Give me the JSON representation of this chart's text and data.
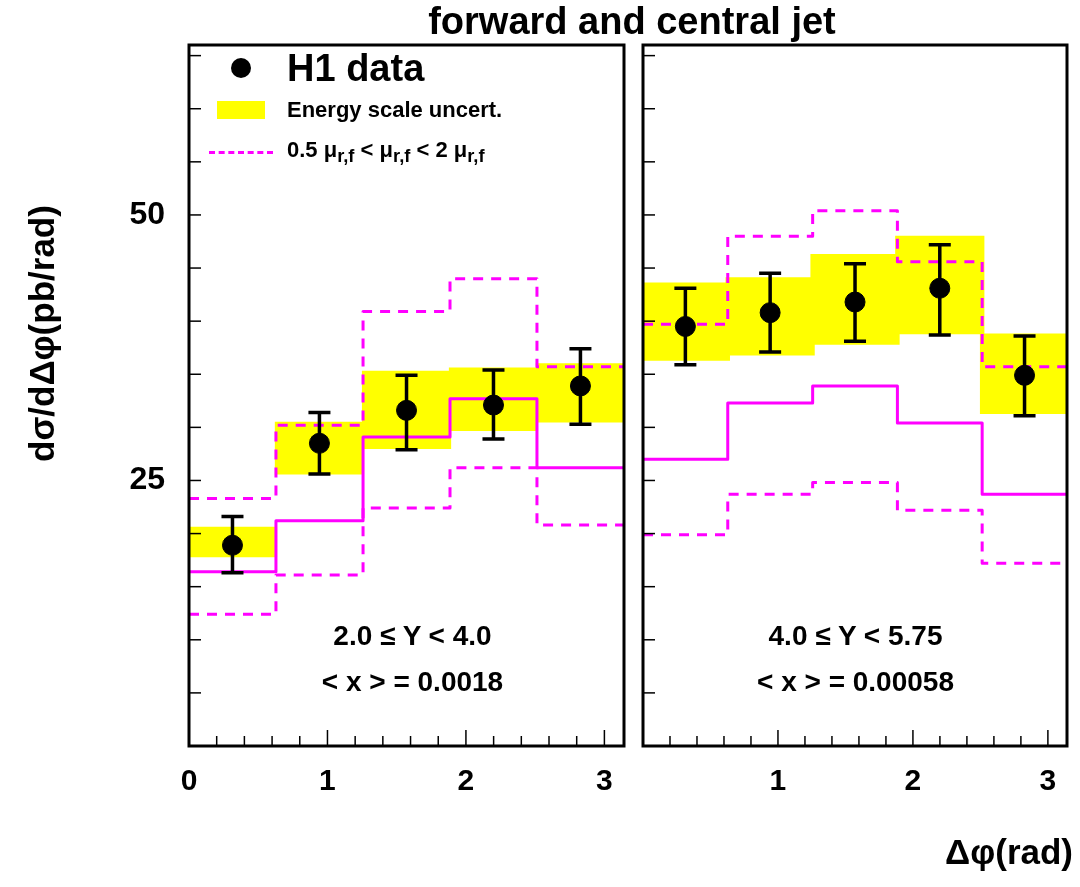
{
  "chart_data": [
    {
      "type": "step",
      "title": "forward and central jet",
      "ylabel": "dσ/dΔφ(pb/rad)",
      "xlim": [
        0,
        3.1416
      ],
      "xticks": [
        0,
        {
          "value": 0.2,
          "label": null
        },
        {
          "value": 0.4,
          "label": null
        },
        {
          "value": 0.6,
          "label": null
        },
        {
          "value": 0.8,
          "label": null
        },
        1,
        {
          "value": 1.2,
          "label": null
        },
        {
          "value": 1.4,
          "label": null
        },
        {
          "value": 1.6,
          "label": null
        },
        {
          "value": 1.8,
          "label": null
        },
        2,
        {
          "value": 2.2,
          "label": null
        },
        {
          "value": 2.4,
          "label": null
        },
        {
          "value": 2.6,
          "label": null
        },
        {
          "value": 2.8,
          "label": null
        },
        3
      ],
      "ylim": [
        0,
        66
      ],
      "yticks": [
        {
          "value": 5,
          "label": null
        },
        {
          "value": 10,
          "label": null
        },
        {
          "value": 15,
          "label": null
        },
        {
          "value": 20,
          "label": null
        },
        25,
        {
          "value": 30,
          "label": null
        },
        {
          "value": 35,
          "label": null
        },
        {
          "value": 40,
          "label": null
        },
        {
          "value": 45,
          "label": null
        },
        50,
        {
          "value": 55,
          "label": null
        },
        {
          "value": 60,
          "label": null
        },
        {
          "value": 65,
          "label": null
        }
      ],
      "legend": "top left",
      "annotations": [
        "2.0 ≤ Y < 4.0",
        "< x > = 0.0018"
      ],
      "series": [
        {
          "name": "H1 data",
          "type": "scatter",
          "marker": "circle",
          "color": "#000000",
          "x": [
            0.314,
            0.942,
            1.571,
            2.199,
            2.827
          ],
          "values": [
            18.9,
            28.5,
            31.6,
            32.1,
            33.9
          ],
          "errors": [
            [
              16.3,
              21.6
            ],
            [
              25.6,
              31.4
            ],
            [
              27.9,
              34.9
            ],
            [
              28.9,
              35.4
            ],
            [
              30.3,
              37.4
            ]
          ]
        },
        {
          "name": "Energy scale uncert.",
          "type": "bar",
          "color": "#ffff00",
          "x": [
            0.314,
            0.942,
            1.571,
            2.199,
            2.827
          ],
          "base": [
            17.8,
            25.6,
            28.0,
            29.7,
            30.5
          ],
          "values": [
            2.8,
            4.9,
            7.3,
            5.9,
            5.5
          ]
        },
        {
          "color": "#ff00ff",
          "line_style": "solid",
          "x": [
            0,
            0.628,
            1.257,
            1.885,
            2.513,
            3.1416
          ],
          "values": [
            16.4,
            21.2,
            29.1,
            32.7,
            26.2,
            26.2
          ]
        },
        {
          "name": "0.5 μ$_{r,f}$ < μ$_{r,f}$ < 2 μ$_{r,f}$",
          "color": "#ff00ff",
          "line_style": "dashed",
          "x": [
            0,
            0.628,
            1.257,
            1.885,
            2.513,
            3.1416
          ],
          "values": [
            23.3,
            30.2,
            40.9,
            44.0,
            35.7,
            35.7
          ]
        },
        {
          "color": "#ff00ff",
          "line_style": "dashed",
          "x": [
            0,
            0.628,
            1.257,
            1.885,
            2.513,
            3.1416
          ],
          "values": [
            12.4,
            16.1,
            22.4,
            26.2,
            20.8,
            20.8
          ]
        }
      ]
    },
    {
      "type": "step",
      "xlabel": "Δφ(rad)",
      "tick_labels": "x",
      "xlim": [
        0,
        3.1416
      ],
      "xticks": [
        {
          "value": 0,
          "label": null
        },
        {
          "value": 0.2,
          "label": null
        },
        {
          "value": 0.4,
          "label": null
        },
        {
          "value": 0.6,
          "label": null
        },
        {
          "value": 0.8,
          "label": null
        },
        1,
        {
          "value": 1.2,
          "label": null
        },
        {
          "value": 1.4,
          "label": null
        },
        {
          "value": 1.6,
          "label": null
        },
        {
          "value": 1.8,
          "label": null
        },
        2,
        {
          "value": 2.2,
          "label": null
        },
        {
          "value": 2.4,
          "label": null
        },
        {
          "value": 2.6,
          "label": null
        },
        {
          "value": 2.8,
          "label": null
        },
        3
      ],
      "ylim": [
        0,
        66
      ],
      "yticks": [
        {
          "value": 5,
          "label": null
        },
        {
          "value": 10,
          "label": null
        },
        {
          "value": 15,
          "label": null
        },
        {
          "value": 20,
          "label": null
        },
        {
          "value": 25,
          "label": null
        },
        {
          "value": 30,
          "label": null
        },
        {
          "value": 35,
          "label": null
        },
        {
          "value": 40,
          "label": null
        },
        {
          "value": 45,
          "label": null
        },
        {
          "value": 50,
          "label": null
        },
        {
          "value": 55,
          "label": null
        },
        {
          "value": 60,
          "label": null
        },
        {
          "value": 65,
          "label": null
        }
      ],
      "annotations": [
        "4.0 ≤ Y < 5.75",
        "< x > = 0.00058"
      ],
      "series": [
        {
          "type": "scatter",
          "marker": "circle",
          "color": "#000000",
          "x": [
            0.314,
            0.942,
            1.571,
            2.199,
            2.827
          ],
          "values": [
            39.5,
            40.8,
            41.8,
            43.1,
            34.9
          ],
          "errors": [
            [
              35.9,
              43.1
            ],
            [
              37.1,
              44.5
            ],
            [
              38.1,
              45.4
            ],
            [
              38.7,
              47.2
            ],
            [
              31.1,
              38.6
            ]
          ]
        },
        {
          "type": "bar",
          "color": "#ffff00",
          "x": [
            0.314,
            0.942,
            1.571,
            2.199,
            2.827
          ],
          "base": [
            36.3,
            36.8,
            37.8,
            38.8,
            31.3
          ],
          "values": [
            7.3,
            7.3,
            8.5,
            9.2,
            7.5
          ]
        },
        {
          "color": "#ff00ff",
          "line_style": "solid",
          "x": [
            0,
            0.628,
            1.257,
            1.885,
            2.513,
            3.1416
          ],
          "values": [
            27.0,
            32.3,
            33.9,
            30.4,
            23.7,
            23.7
          ]
        },
        {
          "color": "#ff00ff",
          "line_style": "dashed",
          "x": [
            0,
            0.628,
            1.257,
            1.885,
            2.513,
            3.1416
          ],
          "values": [
            39.7,
            48.0,
            50.4,
            45.6,
            35.7,
            35.7
          ]
        },
        {
          "color": "#ff00ff",
          "line_style": "dashed",
          "x": [
            0,
            0.628,
            1.257,
            1.885,
            2.513,
            3.1416
          ],
          "values": [
            19.9,
            23.7,
            24.8,
            22.2,
            17.2,
            17.2
          ]
        }
      ]
    }
  ]
}
